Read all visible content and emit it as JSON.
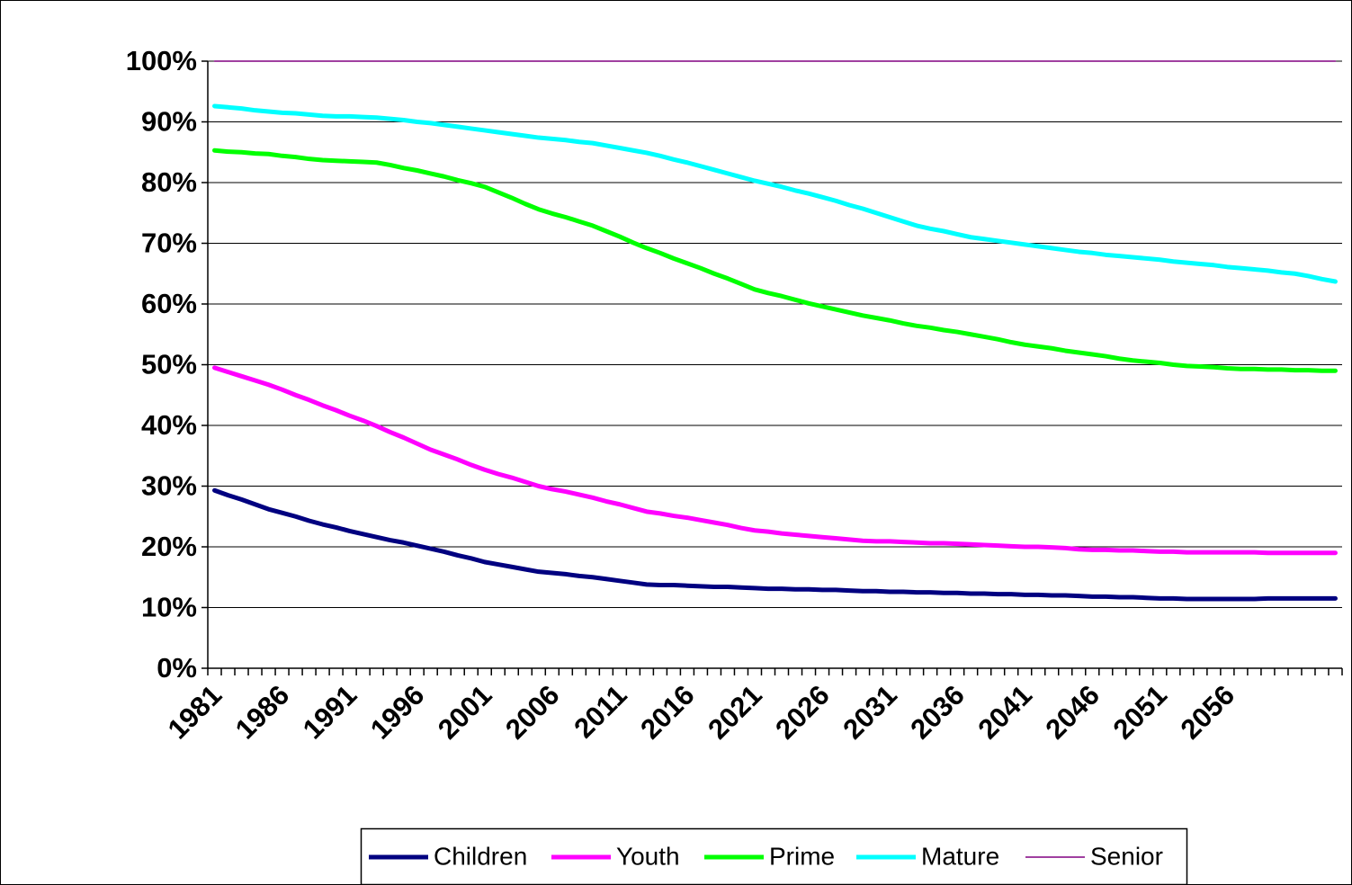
{
  "chart_data": {
    "type": "line",
    "categories": [
      "1981",
      null,
      null,
      null,
      null,
      "1986",
      null,
      null,
      null,
      null,
      "1991",
      null,
      null,
      null,
      null,
      "1996",
      null,
      null,
      null,
      null,
      "2001",
      null,
      null,
      null,
      null,
      "2006",
      null,
      null,
      null,
      null,
      "2011",
      null,
      null,
      null,
      null,
      "2016",
      null,
      null,
      null,
      null,
      "2021",
      null,
      null,
      null,
      null,
      "2026",
      null,
      null,
      null,
      null,
      "2031",
      null,
      null,
      null,
      null,
      "2036",
      null,
      null,
      null,
      null,
      "2041",
      null,
      null,
      null,
      null,
      "2046",
      null,
      null,
      null,
      null,
      "2051",
      null,
      null,
      null,
      null,
      "2056",
      null,
      null,
      null,
      null,
      null,
      null,
      null,
      null
    ],
    "ylim": [
      0,
      100
    ],
    "yticks": [
      {
        "value": 0,
        "label": "0%"
      },
      {
        "value": 10,
        "label": "10%"
      },
      {
        "value": 20,
        "label": "20%"
      },
      {
        "value": 30,
        "label": "30%"
      },
      {
        "value": 40,
        "label": "40%"
      },
      {
        "value": 50,
        "label": "50%"
      },
      {
        "value": 60,
        "label": "60%"
      },
      {
        "value": 70,
        "label": "70%"
      },
      {
        "value": 80,
        "label": "80%"
      },
      {
        "value": 90,
        "label": "90%"
      },
      {
        "value": 100,
        "label": "100%"
      }
    ],
    "grid": true,
    "legend": "bottom",
    "series": [
      {
        "name": "Children",
        "color": "#000080",
        "width": 5,
        "values": [
          29.3,
          28.5,
          27.8,
          27.0,
          26.2,
          25.6,
          25.0,
          24.3,
          23.7,
          23.2,
          22.6,
          22.1,
          21.6,
          21.1,
          20.7,
          20.2,
          19.7,
          19.2,
          18.6,
          18.1,
          17.5,
          17.1,
          16.7,
          16.3,
          15.9,
          15.7,
          15.5,
          15.2,
          15.0,
          14.7,
          14.4,
          14.1,
          13.8,
          13.7,
          13.7,
          13.6,
          13.5,
          13.4,
          13.4,
          13.3,
          13.2,
          13.1,
          13.1,
          13.0,
          13.0,
          12.9,
          12.9,
          12.8,
          12.7,
          12.7,
          12.6,
          12.6,
          12.5,
          12.5,
          12.4,
          12.4,
          12.3,
          12.3,
          12.2,
          12.2,
          12.1,
          12.1,
          12.0,
          12.0,
          11.9,
          11.8,
          11.8,
          11.7,
          11.7,
          11.6,
          11.5,
          11.5,
          11.4,
          11.4,
          11.4,
          11.4,
          11.4,
          11.4,
          11.5,
          11.5,
          11.5,
          11.5,
          11.5,
          11.5
        ]
      },
      {
        "name": "Youth",
        "color": "#ff00ff",
        "width": 5,
        "values": [
          49.5,
          48.8,
          48.1,
          47.4,
          46.7,
          45.9,
          45.0,
          44.2,
          43.3,
          42.5,
          41.6,
          40.8,
          39.9,
          38.9,
          38.0,
          37.0,
          36.0,
          35.2,
          34.4,
          33.5,
          32.7,
          32.0,
          31.4,
          30.7,
          30.0,
          29.5,
          29.1,
          28.6,
          28.1,
          27.5,
          27.0,
          26.4,
          25.8,
          25.5,
          25.1,
          24.8,
          24.4,
          24.0,
          23.6,
          23.1,
          22.7,
          22.5,
          22.2,
          22.0,
          21.8,
          21.6,
          21.4,
          21.2,
          21.0,
          20.9,
          20.9,
          20.8,
          20.7,
          20.6,
          20.6,
          20.5,
          20.4,
          20.3,
          20.2,
          20.1,
          20.0,
          20.0,
          19.9,
          19.8,
          19.6,
          19.5,
          19.5,
          19.4,
          19.4,
          19.3,
          19.2,
          19.2,
          19.1,
          19.1,
          19.1,
          19.1,
          19.1,
          19.1,
          19.0,
          19.0,
          19.0,
          19.0,
          19.0,
          19.0
        ]
      },
      {
        "name": "Prime",
        "color": "#00ff00",
        "width": 5,
        "values": [
          85.3,
          85.1,
          85.0,
          84.8,
          84.7,
          84.4,
          84.2,
          83.9,
          83.7,
          83.6,
          83.5,
          83.4,
          83.3,
          82.9,
          82.4,
          82.0,
          81.5,
          81.0,
          80.4,
          79.9,
          79.3,
          78.4,
          77.5,
          76.5,
          75.6,
          74.9,
          74.3,
          73.6,
          72.9,
          72.0,
          71.1,
          70.1,
          69.2,
          68.4,
          67.5,
          66.7,
          65.9,
          65.0,
          64.2,
          63.3,
          62.4,
          61.8,
          61.3,
          60.7,
          60.1,
          59.6,
          59.1,
          58.6,
          58.1,
          57.7,
          57.3,
          56.8,
          56.4,
          56.1,
          55.7,
          55.4,
          55.0,
          54.6,
          54.2,
          53.7,
          53.3,
          53.0,
          52.7,
          52.3,
          52.0,
          51.7,
          51.4,
          51.0,
          50.7,
          50.5,
          50.3,
          50.0,
          49.8,
          49.7,
          49.6,
          49.4,
          49.3,
          49.3,
          49.2,
          49.2,
          49.1,
          49.1,
          49.0,
          49.0
        ]
      },
      {
        "name": "Mature",
        "color": "#00ffff",
        "width": 5,
        "values": [
          92.6,
          92.4,
          92.2,
          91.9,
          91.7,
          91.5,
          91.4,
          91.2,
          91.0,
          90.9,
          90.9,
          90.8,
          90.7,
          90.5,
          90.3,
          90.0,
          89.8,
          89.5,
          89.2,
          88.9,
          88.6,
          88.3,
          88.0,
          87.7,
          87.4,
          87.2,
          87.0,
          86.7,
          86.5,
          86.1,
          85.7,
          85.3,
          84.9,
          84.4,
          83.8,
          83.3,
          82.7,
          82.1,
          81.5,
          80.9,
          80.3,
          79.8,
          79.3,
          78.7,
          78.2,
          77.6,
          77.0,
          76.3,
          75.7,
          75.0,
          74.3,
          73.6,
          72.9,
          72.4,
          72.0,
          71.5,
          71.0,
          70.7,
          70.4,
          70.1,
          69.8,
          69.5,
          69.2,
          68.9,
          68.6,
          68.4,
          68.1,
          67.9,
          67.7,
          67.5,
          67.3,
          67.0,
          66.8,
          66.6,
          66.4,
          66.1,
          65.9,
          65.7,
          65.5,
          65.2,
          65.0,
          64.6,
          64.1,
          63.7
        ]
      },
      {
        "name": "Senior",
        "color": "#800080",
        "width": 1.5,
        "values": [
          100,
          100,
          100,
          100,
          100,
          100,
          100,
          100,
          100,
          100,
          100,
          100,
          100,
          100,
          100,
          100,
          100,
          100,
          100,
          100,
          100,
          100,
          100,
          100,
          100,
          100,
          100,
          100,
          100,
          100,
          100,
          100,
          100,
          100,
          100,
          100,
          100,
          100,
          100,
          100,
          100,
          100,
          100,
          100,
          100,
          100,
          100,
          100,
          100,
          100,
          100,
          100,
          100,
          100,
          100,
          100,
          100,
          100,
          100,
          100,
          100,
          100,
          100,
          100,
          100,
          100,
          100,
          100,
          100,
          100,
          100,
          100,
          100,
          100,
          100,
          100,
          100,
          100,
          100,
          100,
          100,
          100,
          100,
          100
        ]
      }
    ]
  }
}
